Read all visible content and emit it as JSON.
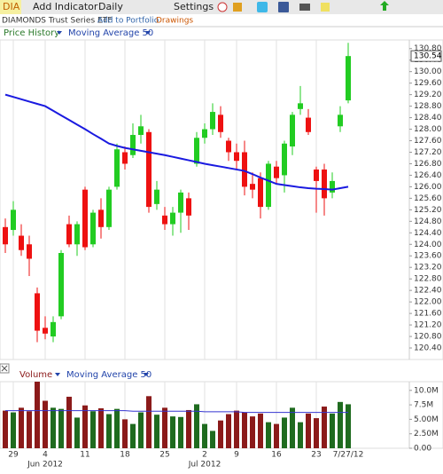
{
  "toolbar": {
    "symbol": "DIA",
    "add_indicator": "Add Indicator",
    "interval": "Daily",
    "settings": "Settings"
  },
  "subheader": {
    "name": "DIAMONDS Trust Series ETF",
    "add_to_portfolio": "Add to Portfolio",
    "drawings": "Drawings"
  },
  "chart_data": [
    {
      "type": "candlestick",
      "legend": [
        "Price History",
        "Moving Average 50"
      ],
      "categories": [
        null,
        "29",
        null,
        null,
        null,
        "4",
        null,
        null,
        null,
        null,
        "11",
        null,
        null,
        null,
        null,
        "18",
        null,
        null,
        null,
        null,
        "25",
        null,
        null,
        null,
        null,
        "2",
        null,
        null,
        null,
        "9",
        null,
        null,
        null,
        null,
        "16",
        null,
        null,
        null,
        null,
        "23",
        null,
        null,
        null,
        "7/27/12"
      ],
      "month_labels": [
        null,
        null,
        null,
        null,
        null,
        "Jun 2012",
        null,
        null,
        null,
        null,
        null,
        null,
        null,
        null,
        null,
        null,
        null,
        null,
        null,
        null,
        null,
        null,
        null,
        null,
        null,
        "Jul 2012",
        null,
        null,
        null,
        null,
        null,
        null,
        null,
        null,
        null,
        null,
        null,
        null,
        null,
        null,
        null,
        null,
        null,
        null
      ],
      "open": [
        124.6,
        124.5,
        124.3,
        124.0,
        122.3,
        121.1,
        120.8,
        121.5,
        124.7,
        124.0,
        125.9,
        124.0,
        125.2,
        124.6,
        126.0,
        127.2,
        127.1,
        127.8,
        127.9,
        125.4,
        125.0,
        124.7,
        125.1,
        125.6,
        126.8,
        127.7,
        128.0,
        128.5,
        127.6,
        127.2,
        127.2,
        126.1,
        126.3,
        125.3,
        126.7,
        126.4,
        127.4,
        128.7,
        128.4,
        126.6,
        126.6,
        125.8,
        128.1,
        129.0
      ],
      "high": [
        124.9,
        125.5,
        124.7,
        124.3,
        122.5,
        121.5,
        121.5,
        123.8,
        125.0,
        124.8,
        126.0,
        125.2,
        125.6,
        126.0,
        127.5,
        127.4,
        128.2,
        128.5,
        128.0,
        126.2,
        125.3,
        125.3,
        125.9,
        125.8,
        127.9,
        128.2,
        128.9,
        128.8,
        127.7,
        127.5,
        127.6,
        126.5,
        126.5,
        126.9,
        126.9,
        127.6,
        128.6,
        129.5,
        128.7,
        126.7,
        126.8,
        126.5,
        128.8,
        131.0
      ],
      "low": [
        123.7,
        124.3,
        123.6,
        122.9,
        120.6,
        120.7,
        120.6,
        121.4,
        123.9,
        123.6,
        123.8,
        123.9,
        124.2,
        124.5,
        125.9,
        126.6,
        127.0,
        127.5,
        125.1,
        125.2,
        124.5,
        124.3,
        124.4,
        124.5,
        126.7,
        127.5,
        127.8,
        127.7,
        126.9,
        126.6,
        125.7,
        125.6,
        124.9,
        125.2,
        126.1,
        125.8,
        127.1,
        128.5,
        127.8,
        125.1,
        125.0,
        125.6,
        127.9,
        128.9
      ],
      "close": [
        124.0,
        125.2,
        123.8,
        123.5,
        121.0,
        120.9,
        121.3,
        123.7,
        124.0,
        124.7,
        123.9,
        125.1,
        124.6,
        125.9,
        127.3,
        126.8,
        127.8,
        128.1,
        125.3,
        125.9,
        124.7,
        125.1,
        125.8,
        125.0,
        127.7,
        128.0,
        128.6,
        127.9,
        127.2,
        126.9,
        126.0,
        125.9,
        125.3,
        126.8,
        126.3,
        127.5,
        128.5,
        128.9,
        127.9,
        126.2,
        125.6,
        126.2,
        128.5,
        130.54
      ],
      "up_color": "#22cc22",
      "down_color": "#ee1111",
      "series": [
        {
          "name": "Moving Average 50",
          "color": "#1a1ae0",
          "values": [
            129.2,
            129.12,
            129.04,
            128.96,
            128.88,
            128.8,
            128.64,
            128.48,
            128.32,
            128.16,
            128.0,
            127.83,
            127.67,
            127.5,
            127.42,
            127.35,
            127.3,
            127.25,
            127.2,
            127.15,
            127.1,
            127.04,
            126.98,
            126.92,
            126.86,
            126.8,
            126.75,
            126.7,
            126.65,
            126.6,
            126.55,
            126.44,
            126.32,
            126.21,
            126.1,
            126.06,
            126.02,
            125.98,
            125.95,
            125.93,
            125.92,
            125.9,
            125.95,
            126.0
          ]
        }
      ],
      "last_price": 130.54,
      "ylim": [
        120.0,
        131.1
      ],
      "yticks": [
        {
          "value": 120.4,
          "label": "120.40"
        },
        {
          "value": 120.8,
          "label": "120.80"
        },
        {
          "value": 121.2,
          "label": "121.20"
        },
        {
          "value": 121.6,
          "label": "121.60"
        },
        {
          "value": 122.0,
          "label": "122.00"
        },
        {
          "value": 122.4,
          "label": "122.40"
        },
        {
          "value": 122.8,
          "label": "122.80"
        },
        {
          "value": 123.2,
          "label": "123.20"
        },
        {
          "value": 123.6,
          "label": "123.60"
        },
        {
          "value": 124.0,
          "label": "124.00"
        },
        {
          "value": 124.4,
          "label": "124.40"
        },
        {
          "value": 124.8,
          "label": "124.80"
        },
        {
          "value": 125.2,
          "label": "125.20"
        },
        {
          "value": 125.6,
          "label": "125.60"
        },
        {
          "value": 126.0,
          "label": "126.00"
        },
        {
          "value": 126.4,
          "label": "126.40"
        },
        {
          "value": 126.8,
          "label": "126.80"
        },
        {
          "value": 127.2,
          "label": "127.20"
        },
        {
          "value": 127.6,
          "label": "127.60"
        },
        {
          "value": 128.0,
          "label": "128.00"
        },
        {
          "value": 128.4,
          "label": "128.40"
        },
        {
          "value": 128.8,
          "label": "128.80"
        },
        {
          "value": 129.2,
          "label": "129.20"
        },
        {
          "value": 129.6,
          "label": "129.60"
        },
        {
          "value": 130.0,
          "label": "130.00"
        },
        {
          "value": 130.4,
          "label": "130.40"
        },
        {
          "value": 130.8,
          "label": "130.80"
        }
      ]
    },
    {
      "type": "bar",
      "legend": [
        "Volume",
        "Moving Average 50"
      ],
      "values": [
        6.5,
        6.2,
        7.0,
        6.4,
        11.5,
        8.2,
        7.0,
        6.8,
        8.9,
        5.3,
        7.4,
        6.4,
        6.9,
        5.9,
        6.8,
        5.0,
        4.2,
        6.2,
        9.0,
        5.8,
        7.0,
        5.5,
        5.4,
        6.6,
        7.6,
        4.2,
        3.0,
        4.8,
        5.9,
        6.5,
        6.2,
        5.5,
        6.0,
        4.5,
        4.2,
        5.3,
        7.0,
        4.5,
        6.0,
        5.2,
        7.2,
        6.0,
        8.0,
        7.6
      ],
      "up_color": "#1f6b1f",
      "down_color": "#8b1a1a",
      "series": [
        {
          "name": "Moving Average 50",
          "color": "#3535d0",
          "values": [
            6.5,
            6.5,
            6.5,
            6.5,
            6.5,
            6.5,
            6.5,
            6.5,
            6.5,
            6.5,
            6.5,
            6.5,
            6.5,
            6.5,
            6.5,
            6.5,
            6.4,
            6.4,
            6.4,
            6.4,
            6.4,
            6.4,
            6.4,
            6.4,
            6.4,
            6.3,
            6.3,
            6.3,
            6.3,
            6.3,
            6.2,
            6.2,
            6.2,
            6.2,
            6.2,
            6.2,
            6.2,
            6.2,
            6.2,
            6.2,
            6.2,
            6.2,
            6.2,
            6.2
          ]
        }
      ],
      "ylim": [
        0,
        11.5
      ],
      "yticks": [
        {
          "value": 0,
          "label": "0.00"
        },
        {
          "value": 2.5,
          "label": "2.50M"
        },
        {
          "value": 5,
          "label": "5.00M"
        },
        {
          "value": 7.5,
          "label": "7.5M"
        },
        {
          "value": 10,
          "label": "10.0M"
        }
      ]
    }
  ]
}
